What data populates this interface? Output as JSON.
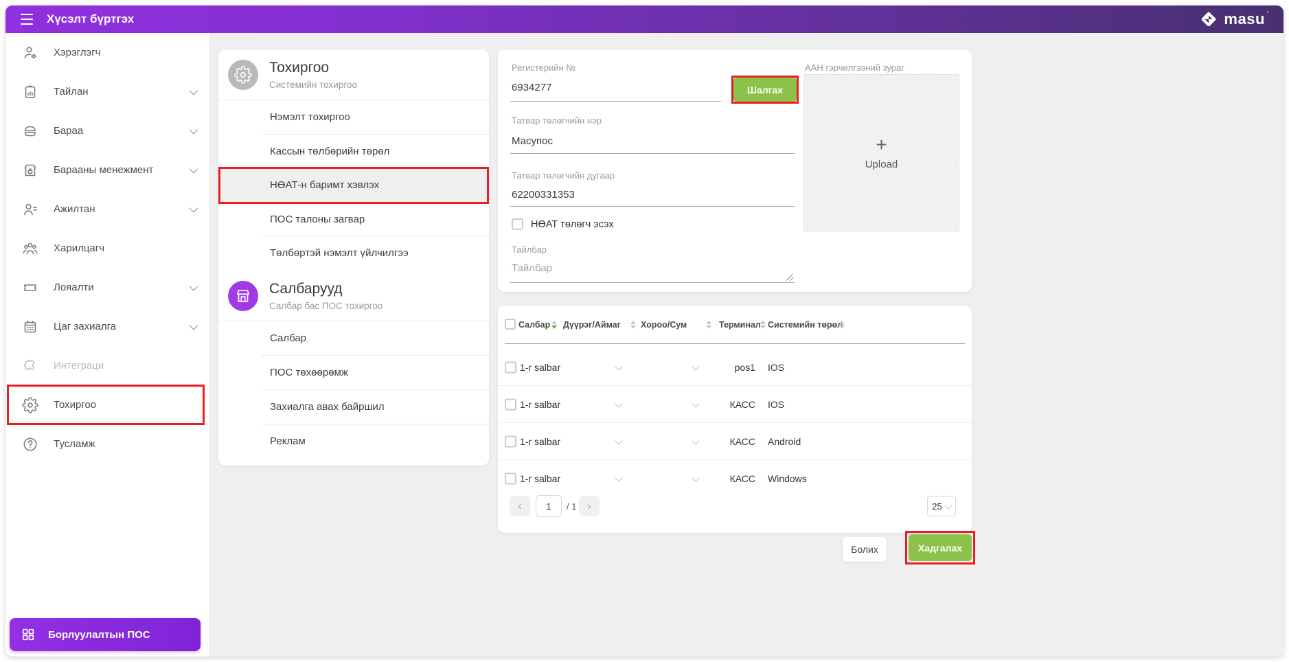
{
  "topbar": {
    "title": "Хүсэлт бүртгэх",
    "logo_text": "masu",
    "logo_mark": "'"
  },
  "sidebar": {
    "items": [
      {
        "id": "users",
        "label": "Хэрэглэгч",
        "icon": "user-gear-icon",
        "chevron": false
      },
      {
        "id": "report",
        "label": "Тайлан",
        "icon": "report-icon",
        "chevron": true
      },
      {
        "id": "goods",
        "label": "Бараа",
        "icon": "goods-icon",
        "chevron": true
      },
      {
        "id": "goods-management",
        "label": "Барааны менежмент",
        "icon": "store-manage-icon",
        "chevron": true
      },
      {
        "id": "staff",
        "label": "Ажилтан",
        "icon": "staff-icon",
        "chevron": true
      },
      {
        "id": "partners",
        "label": "Харилцагч",
        "icon": "partners-icon",
        "chevron": false
      },
      {
        "id": "loyalty",
        "label": "Лояалти",
        "icon": "loyalty-icon",
        "chevron": true
      },
      {
        "id": "booking",
        "label": "Цаг захиалга",
        "icon": "calendar-icon",
        "chevron": true
      },
      {
        "id": "integration",
        "label": "Интеграци",
        "icon": "integration-icon",
        "chevron": false,
        "disabled": true
      },
      {
        "id": "settings",
        "label": "Тохиргоо",
        "icon": "gear-icon",
        "chevron": false,
        "annotated": true
      },
      {
        "id": "help",
        "label": "Тусламж",
        "icon": "help-icon",
        "chevron": false
      }
    ],
    "pos_button_label": "Борлуулалтын ПОС"
  },
  "settings_menu": {
    "sections": [
      {
        "title": "Тохиргоо",
        "subtitle": "Системийн тохиргоо",
        "icon": "gear-circle-icon",
        "icon_bg": "#b9b9b9",
        "items": [
          {
            "label": "Нэмэлт тохиргоо"
          },
          {
            "label": "Кассын төлбөрийн төрөл"
          },
          {
            "label": "НӨАТ-н баримт хэвлэх",
            "active": true,
            "annotated": true
          },
          {
            "label": "ПОС талоны загвар"
          },
          {
            "label": "Төлбөртэй нэмэлт үйлчилгээ"
          }
        ]
      },
      {
        "title": "Салбарууд",
        "subtitle": "Салбар бас ПОС тохиргоо",
        "icon": "store-circle-icon",
        "icon_bg": "#a03ae6",
        "items": [
          {
            "label": "Салбар"
          },
          {
            "label": "ПОС төхөөрөмж"
          },
          {
            "label": "Захиалга авах байршил"
          },
          {
            "label": "Реклам"
          }
        ]
      }
    ]
  },
  "form": {
    "reg_label": "Регистерийн №",
    "reg_value": "6934277",
    "check_button": "Шалгах",
    "taxpayer_name_label": "Татвар төлөгчийн нэр",
    "taxpayer_name_value": "Масупос",
    "taxpayer_number_label": "Татвар төлөгчийн дугаар",
    "taxpayer_number_value": "62200331353",
    "vat_checkbox_label": "НӨАТ төлөгч эсэх",
    "vat_checked": false,
    "note_label": "Тайлбар",
    "note_placeholder": "Тайлбар",
    "upload_label": "ААН гэрчилгээний зураг",
    "upload_plus": "+",
    "upload_text": "Upload"
  },
  "table": {
    "columns": [
      {
        "label": "Салбар",
        "sort": "desc"
      },
      {
        "label": "Дүүрэг/Аймаг",
        "sort": "none"
      },
      {
        "label": "Хороо/Сум",
        "sort": "none"
      },
      {
        "label": "Терминал",
        "sort": "none"
      },
      {
        "label": "Системийн төрөл",
        "sort": "none"
      }
    ],
    "rows": [
      {
        "branch": "1-r salbar",
        "terminal": "pos1",
        "system": "IOS"
      },
      {
        "branch": "1-r salbar",
        "terminal": "КАСС",
        "system": "IOS"
      },
      {
        "branch": "1-r salbar",
        "terminal": "КАСС",
        "system": "Android"
      },
      {
        "branch": "1-r salbar",
        "terminal": "КАСС",
        "system": "Windows"
      }
    ],
    "pagination": {
      "page": "1",
      "total": "/ 1",
      "page_size": "25"
    }
  },
  "actions": {
    "cancel": "Болих",
    "save": "Хадгалах"
  },
  "colors": {
    "accent_purple": "#8b2fd9",
    "topbar_gradient_start": "#9130de",
    "topbar_gradient_end": "#473070",
    "green": "#8bc34a",
    "annotation_red": "#ec1c24",
    "active_item_bg": "#efefef"
  }
}
